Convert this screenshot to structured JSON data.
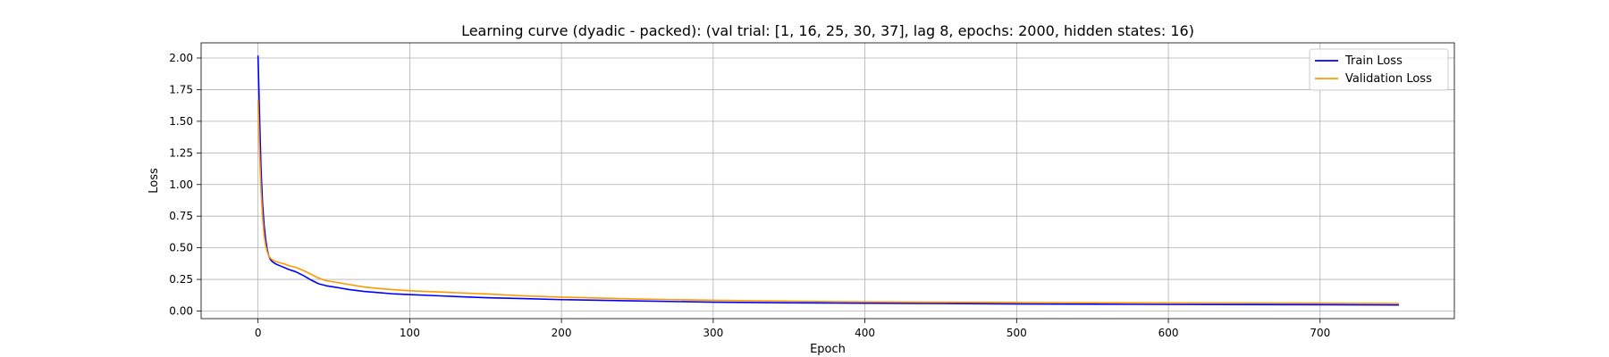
{
  "chart_data": {
    "type": "line",
    "title": "Learning curve (dyadic - packed): (val trial: [1, 16, 25, 30, 37], lag 8, epochs: 2000, hidden states: 16)",
    "xlabel": "Epoch",
    "ylabel": "Loss",
    "xlim": [
      -37.5,
      788.5
    ],
    "ylim": [
      -0.06,
      2.12
    ],
    "xticks": [
      0,
      100,
      200,
      300,
      400,
      500,
      600,
      700
    ],
    "xtick_labels": [
      "0",
      "100",
      "200",
      "300",
      "400",
      "500",
      "600",
      "700"
    ],
    "yticks": [
      0.0,
      0.25,
      0.5,
      0.75,
      1.0,
      1.25,
      1.5,
      1.75,
      2.0
    ],
    "ytick_labels": [
      "0.00",
      "0.25",
      "0.50",
      "0.75",
      "1.00",
      "1.25",
      "1.50",
      "1.75",
      "2.00"
    ],
    "grid": true,
    "legend_position": "top-right",
    "series": [
      {
        "name": "Train Loss",
        "color": "#0000ff",
        "x": [
          0,
          1,
          2,
          3,
          4,
          5,
          6,
          7,
          8,
          9,
          10,
          12,
          15,
          18,
          20,
          25,
          30,
          35,
          40,
          45,
          50,
          60,
          70,
          80,
          90,
          100,
          120,
          150,
          175,
          200,
          250,
          300,
          350,
          400,
          450,
          500,
          550,
          600,
          650,
          700,
          752
        ],
        "values": [
          2.02,
          1.55,
          1.12,
          0.85,
          0.68,
          0.57,
          0.49,
          0.44,
          0.41,
          0.395,
          0.385,
          0.37,
          0.355,
          0.34,
          0.33,
          0.31,
          0.28,
          0.245,
          0.215,
          0.2,
          0.19,
          0.17,
          0.155,
          0.145,
          0.135,
          0.13,
          0.12,
          0.105,
          0.098,
          0.09,
          0.08,
          0.07,
          0.065,
          0.062,
          0.059,
          0.056,
          0.054,
          0.052,
          0.051,
          0.05,
          0.048
        ]
      },
      {
        "name": "Validation Loss",
        "color": "#ff9900",
        "x": [
          0,
          1,
          2,
          3,
          4,
          5,
          6,
          7,
          8,
          9,
          10,
          12,
          15,
          18,
          20,
          25,
          30,
          35,
          40,
          45,
          50,
          60,
          70,
          80,
          90,
          100,
          120,
          150,
          175,
          200,
          250,
          300,
          350,
          400,
          450,
          500,
          550,
          600,
          650,
          700,
          752
        ],
        "values": [
          1.67,
          1.25,
          0.95,
          0.74,
          0.6,
          0.52,
          0.47,
          0.44,
          0.42,
          0.41,
          0.4,
          0.39,
          0.38,
          0.37,
          0.36,
          0.345,
          0.32,
          0.29,
          0.26,
          0.24,
          0.23,
          0.21,
          0.19,
          0.178,
          0.168,
          0.16,
          0.15,
          0.135,
          0.12,
          0.11,
          0.095,
          0.085,
          0.078,
          0.073,
          0.07,
          0.068,
          0.066,
          0.064,
          0.063,
          0.062,
          0.06
        ]
      }
    ]
  }
}
